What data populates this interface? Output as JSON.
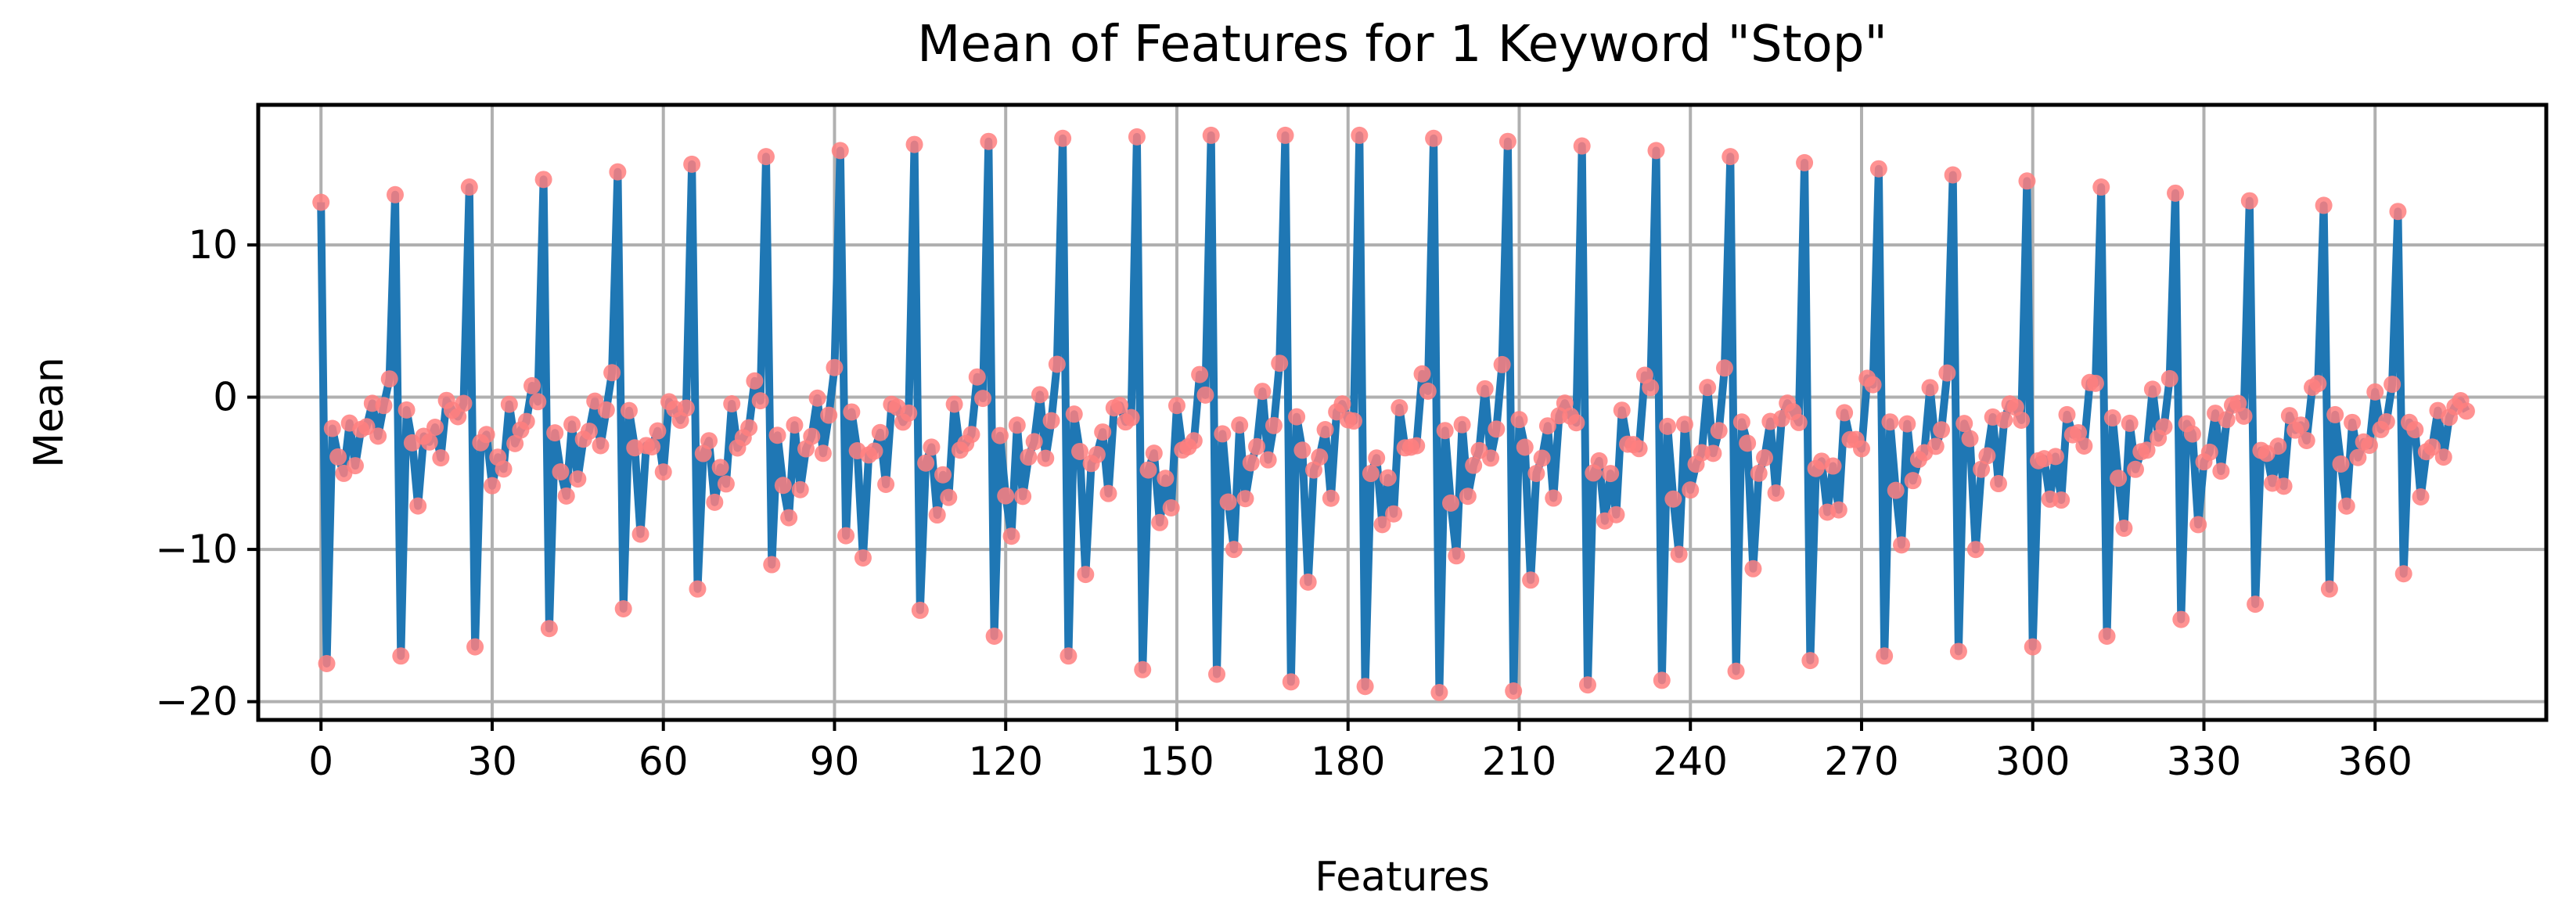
{
  "chart_data": {
    "type": "line",
    "title": "Mean of Features for 1 Keyword \"Stop\"",
    "xlabel": "Features",
    "ylabel": "Mean",
    "xlim": [
      -11,
      390
    ],
    "ylim": [
      -21.2,
      19.2
    ],
    "xticks": [
      0,
      30,
      60,
      90,
      120,
      150,
      180,
      210,
      240,
      270,
      300,
      330,
      360
    ],
    "yticks": [
      10,
      0,
      -10,
      -20
    ],
    "ytick_labels": [
      "10",
      "0",
      "−10",
      "−20"
    ],
    "grid": true,
    "line_color": "#1f77b4",
    "marker_color": "#ff7f7f",
    "period": 13,
    "n_points": 377,
    "series": [
      {
        "peaks": [
          12.8,
          13.3,
          13.8,
          14.3,
          14.8,
          15.3,
          15.8,
          16.2,
          16.6,
          16.8,
          17.0,
          17.1,
          17.2,
          17.2,
          17.2,
          17.0,
          16.8,
          16.5,
          16.2,
          15.8,
          15.4,
          15.0,
          14.6,
          14.2,
          13.8,
          13.4,
          12.9,
          12.6,
          12.2
        ],
        "troughs": [
          -17.5,
          -17.0,
          -16.4,
          -15.2,
          -13.9,
          -12.6,
          -11.0,
          -9.1,
          -14.0,
          -15.7,
          -17.0,
          -17.9,
          -18.2,
          -18.7,
          -19.0,
          -19.4,
          -19.3,
          -18.9,
          -18.6,
          -18.0,
          -17.3,
          -17.0,
          -16.7,
          -16.4,
          -15.7,
          -14.6,
          -13.6,
          -12.6,
          -11.6,
          -10.4
        ]
      }
    ]
  }
}
